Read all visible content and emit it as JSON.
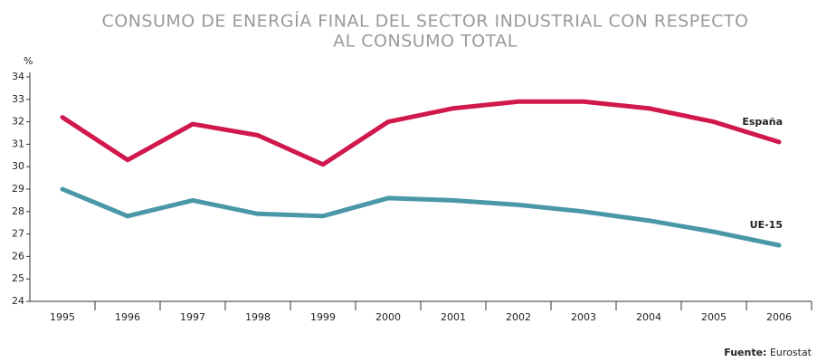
{
  "chart_data": {
    "type": "line",
    "title": [
      "CONSUMO DE ENERGÍA FINAL DEL SECTOR INDUSTRIAL CON RESPECTO",
      "AL CONSUMO TOTAL"
    ],
    "y_label": "%",
    "source_label": "Fuente:",
    "source": "Eurostat",
    "categories": [
      "1995",
      "1996",
      "1997",
      "1998",
      "1999",
      "2000",
      "2001",
      "2002",
      "2003",
      "2004",
      "2005",
      "2006"
    ],
    "series": [
      {
        "name": "España",
        "color": "#d0184c",
        "values": [
          32.2,
          30.3,
          31.9,
          31.4,
          30.1,
          32.0,
          32.6,
          32.9,
          32.9,
          32.6,
          32.0,
          31.1
        ]
      },
      {
        "name": "UE-15",
        "color": "#4a97a8",
        "values": [
          29.0,
          27.8,
          28.5,
          27.9,
          27.8,
          28.6,
          28.5,
          28.3,
          28.0,
          27.6,
          27.1,
          26.5
        ]
      }
    ],
    "ylim": [
      24,
      34
    ],
    "yticks": [
      24,
      25,
      26,
      27,
      28,
      29,
      30,
      31,
      32,
      33,
      34
    ],
    "grid": false
  }
}
